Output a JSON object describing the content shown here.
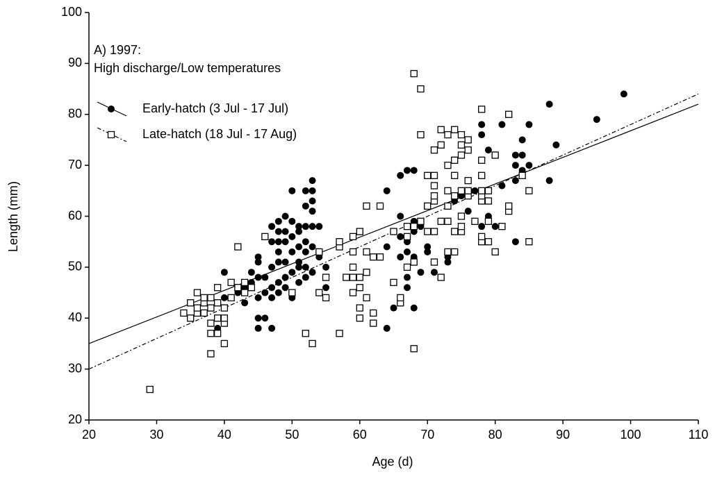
{
  "chart_data": {
    "type": "scatter",
    "annotation": [
      "A) 1997:",
      "High discharge/Low temperatures"
    ],
    "x_label": "Age (d)",
    "y_label": "Length (mm)",
    "xlim": [
      20,
      110
    ],
    "xticks": [
      20,
      30,
      40,
      50,
      60,
      70,
      80,
      90,
      100,
      110
    ],
    "ylim": [
      20,
      100
    ],
    "yticks": [
      20,
      30,
      40,
      50,
      60,
      70,
      80,
      90,
      100
    ],
    "legend": "upper left",
    "series": [
      {
        "name": "Early-hatch (3 Jul - 17 Jul)",
        "marker": "circle",
        "color": "#000000",
        "fit": {
          "x": [
            20,
            110
          ],
          "values": [
            35,
            82
          ]
        },
        "x": [
          38,
          39,
          40,
          40,
          41,
          42,
          43,
          43,
          44,
          44,
          45,
          45,
          45,
          45,
          45,
          45,
          46,
          46,
          46,
          47,
          47,
          47,
          47,
          47,
          47,
          48,
          48,
          48,
          48,
          48,
          48,
          48,
          49,
          49,
          49,
          49,
          49,
          49,
          50,
          50,
          50,
          50,
          50,
          50,
          50,
          51,
          51,
          51,
          51,
          51,
          51,
          52,
          52,
          52,
          52,
          52,
          52,
          52,
          53,
          53,
          53,
          53,
          53,
          53,
          53,
          54,
          54,
          55,
          55,
          57,
          57,
          64,
          64,
          64,
          65,
          65,
          66,
          66,
          66,
          66,
          66,
          67,
          67,
          67,
          67,
          67,
          67,
          68,
          68,
          68,
          68,
          68,
          69,
          69,
          70,
          70,
          70,
          71,
          73,
          73,
          74,
          75,
          75,
          76,
          77,
          78,
          78,
          78,
          79,
          79,
          80,
          81,
          81,
          83,
          83,
          83,
          83,
          84,
          84,
          84,
          85,
          85,
          88,
          88,
          89,
          95,
          99
        ],
        "values": [
          37,
          38,
          44,
          49,
          44,
          45,
          46,
          43,
          47,
          49,
          38,
          40,
          44,
          48,
          51,
          52,
          40,
          45,
          48,
          38,
          44,
          46,
          50,
          55,
          58,
          45,
          47,
          51,
          53,
          55,
          57,
          59,
          46,
          48,
          51,
          55,
          57,
          60,
          44,
          45,
          49,
          53,
          56,
          59,
          65,
          47,
          50,
          51,
          54,
          57,
          58,
          48,
          50,
          53,
          55,
          58,
          62,
          65,
          49,
          54,
          58,
          61,
          63,
          65,
          67,
          52,
          58,
          46,
          50,
          55,
          54,
          38,
          54,
          65,
          42,
          47,
          43,
          52,
          56,
          60,
          68,
          46,
          48,
          50,
          53,
          55,
          69,
          42,
          52,
          57,
          59,
          69,
          49,
          58,
          53,
          54,
          68,
          49,
          51,
          52,
          63,
          57,
          64,
          61,
          65,
          58,
          76,
          78,
          60,
          73,
          58,
          66,
          78,
          55,
          67,
          70,
          72,
          69,
          72,
          75,
          70,
          78,
          67,
          82,
          74,
          79,
          84
        ]
      },
      {
        "name": "Late-hatch (18 Jul - 17 Aug)",
        "marker": "square",
        "color": "#000000",
        "fit": {
          "x": [
            20,
            110
          ],
          "values": [
            30,
            84
          ]
        },
        "x": [
          29,
          34,
          35,
          35,
          36,
          36,
          36,
          37,
          37,
          37,
          38,
          38,
          38,
          38,
          38,
          39,
          39,
          39,
          39,
          40,
          40,
          40,
          40,
          41,
          41,
          42,
          42,
          43,
          43,
          44,
          46,
          50,
          52,
          53,
          54,
          54,
          55,
          55,
          57,
          57,
          57,
          58,
          59,
          59,
          59,
          59,
          59,
          60,
          60,
          60,
          60,
          60,
          61,
          61,
          61,
          61,
          62,
          62,
          62,
          63,
          63,
          65,
          65,
          66,
          66,
          67,
          67,
          67,
          68,
          68,
          68,
          68,
          69,
          69,
          69,
          70,
          70,
          70,
          71,
          71,
          71,
          71,
          71,
          71,
          71,
          72,
          72,
          72,
          72,
          73,
          73,
          73,
          73,
          73,
          73,
          74,
          74,
          74,
          74,
          74,
          74,
          75,
          75,
          75,
          75,
          75,
          75,
          75,
          76,
          76,
          76,
          76,
          76,
          77,
          78,
          78,
          78,
          78,
          78,
          78,
          78,
          78,
          79,
          79,
          79,
          79,
          80,
          80,
          81,
          82,
          82,
          82,
          84,
          85,
          85
        ],
        "values": [
          26,
          41,
          40,
          43,
          41,
          42,
          45,
          41,
          43,
          44,
          33,
          37,
          39,
          42,
          44,
          37,
          40,
          43,
          46,
          35,
          39,
          40,
          42,
          44,
          47,
          46,
          54,
          45,
          47,
          46,
          56,
          45,
          37,
          35,
          45,
          53,
          44,
          48,
          37,
          54,
          55,
          48,
          45,
          48,
          50,
          53,
          56,
          40,
          42,
          46,
          48,
          57,
          44,
          49,
          53,
          62,
          39,
          41,
          52,
          52,
          62,
          47,
          57,
          43,
          44,
          50,
          56,
          58,
          34,
          51,
          58,
          88,
          59,
          76,
          85,
          57,
          62,
          68,
          51,
          57,
          63,
          64,
          66,
          68,
          73,
          48,
          59,
          74,
          77,
          53,
          59,
          62,
          65,
          70,
          76,
          53,
          57,
          64,
          68,
          71,
          77,
          57,
          58,
          60,
          65,
          72,
          74,
          76,
          64,
          65,
          67,
          73,
          75,
          59,
          55,
          56,
          63,
          64,
          65,
          68,
          71,
          81,
          55,
          59,
          63,
          65,
          53,
          72,
          58,
          61,
          62,
          80,
          68,
          55,
          65
        ]
      }
    ]
  }
}
